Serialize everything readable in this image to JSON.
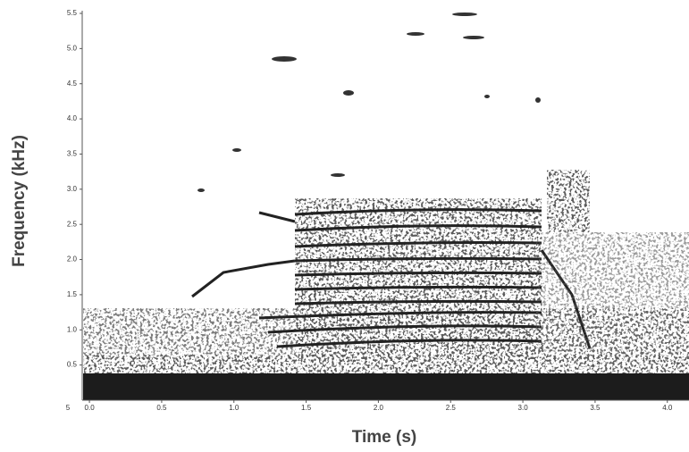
{
  "chart_data": {
    "type": "spectrogram",
    "x_label": "Time (s)",
    "y_label": "Frequency (kHz)",
    "xlim": [
      -0.05,
      4.15
    ],
    "ylim": [
      0,
      5.5
    ],
    "xticks": [
      {
        "value": 0,
        "label": "0.0"
      },
      0.5,
      {
        "value": 1,
        "label": "1.0"
      },
      1.5,
      {
        "value": 2,
        "label": "2.0"
      },
      2.5,
      {
        "value": 3,
        "label": "3.0"
      },
      3.5,
      {
        "value": 4,
        "label": "4.0"
      }
    ],
    "yticks": [
      0.5,
      {
        "value": 1,
        "label": "1.0"
      },
      1.5,
      {
        "value": 2,
        "label": "2.0"
      },
      2.5,
      {
        "value": 3,
        "label": "3.0"
      },
      3.5,
      {
        "value": 4,
        "label": "4.0"
      },
      4.5,
      {
        "value": 5,
        "label": "5.0"
      },
      5.5
    ],
    "annotations": [
      "5"
    ]
  }
}
